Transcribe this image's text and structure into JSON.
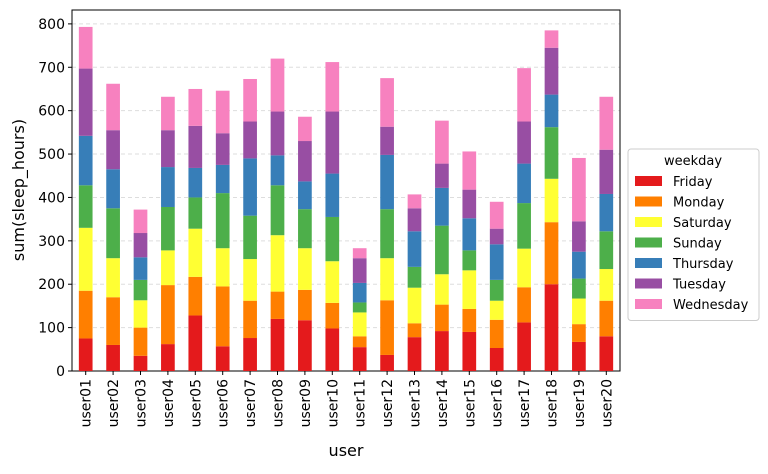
{
  "chart_data": {
    "type": "stacked_bar",
    "x_label": "user",
    "y_label": "sum(sleep_hours)",
    "legend_title": "weekday",
    "legend_position": "right",
    "grid": true,
    "categories": [
      "user01",
      "user02",
      "user03",
      "user04",
      "user05",
      "user06",
      "user07",
      "user08",
      "user09",
      "user10",
      "user11",
      "user12",
      "user13",
      "user14",
      "user15",
      "user16",
      "user17",
      "user18",
      "user19",
      "user20"
    ],
    "ylim": [
      0,
      832
    ],
    "yticks": [
      0,
      100,
      200,
      300,
      400,
      500,
      600,
      700,
      800
    ],
    "series": [
      {
        "name": "Friday",
        "color": "#e41a1c",
        "values": [
          75,
          60,
          35,
          62,
          128,
          57,
          76,
          120,
          117,
          98,
          55,
          37,
          78,
          92,
          90,
          53,
          112,
          200,
          67,
          80
        ]
      },
      {
        "name": "Monday",
        "color": "#ff7f00",
        "values": [
          110,
          110,
          65,
          136,
          89,
          138,
          86,
          63,
          70,
          59,
          25,
          126,
          32,
          61,
          53,
          65,
          81,
          143,
          41,
          82
        ]
      },
      {
        "name": "Saturday",
        "color": "#ffff33",
        "values": [
          145,
          90,
          63,
          80,
          111,
          88,
          96,
          130,
          96,
          96,
          55,
          97,
          82,
          70,
          89,
          44,
          89,
          100,
          59,
          73
        ]
      },
      {
        "name": "Sunday",
        "color": "#4daf4a",
        "values": [
          98,
          115,
          47,
          100,
          72,
          127,
          100,
          115,
          90,
          102,
          23,
          113,
          48,
          112,
          46,
          48,
          105,
          119,
          46,
          87
        ]
      },
      {
        "name": "Thursday",
        "color": "#377eb8",
        "values": [
          114,
          90,
          52,
          92,
          68,
          65,
          132,
          69,
          64,
          100,
          45,
          125,
          82,
          87,
          74,
          82,
          91,
          75,
          62,
          86
        ]
      },
      {
        "name": "Tuesday",
        "color": "#984ea3",
        "values": [
          155,
          90,
          56,
          85,
          97,
          73,
          85,
          101,
          93,
          143,
          57,
          65,
          53,
          56,
          66,
          36,
          97,
          108,
          70,
          102
        ]
      },
      {
        "name": "Wednesday",
        "color": "#f781bf",
        "values": [
          96,
          107,
          54,
          77,
          85,
          98,
          98,
          122,
          56,
          114,
          23,
          112,
          32,
          99,
          88,
          62,
          123,
          40,
          146,
          122
        ]
      }
    ]
  }
}
